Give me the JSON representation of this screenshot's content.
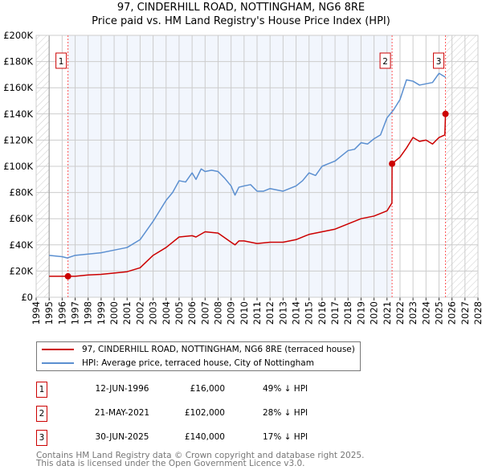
{
  "chart_data": {
    "type": "line",
    "title": "97, CINDERHILL ROAD, NOTTINGHAM, NG6 8RE",
    "subtitle": "Price paid vs. HM Land Registry's House Price Index (HPI)",
    "xlim": [
      1994,
      2028
    ],
    "ylim": [
      0,
      200000
    ],
    "x_ticks": [
      "1994",
      "1995",
      "1996",
      "1997",
      "1998",
      "1999",
      "2000",
      "2001",
      "2002",
      "2003",
      "2004",
      "2005",
      "2006",
      "2007",
      "2008",
      "2009",
      "2010",
      "2011",
      "2012",
      "2013",
      "2014",
      "2015",
      "2016",
      "2017",
      "2018",
      "2019",
      "2020",
      "2021",
      "2022",
      "2023",
      "2024",
      "2025",
      "2026",
      "2027",
      "2028"
    ],
    "y_ticks": [
      {
        "v": 0,
        "label": "£0"
      },
      {
        "v": 20000,
        "label": "£20K"
      },
      {
        "v": 40000,
        "label": "£40K"
      },
      {
        "v": 60000,
        "label": "£60K"
      },
      {
        "v": 80000,
        "label": "£80K"
      },
      {
        "v": 100000,
        "label": "£100K"
      },
      {
        "v": 120000,
        "label": "£120K"
      },
      {
        "v": 140000,
        "label": "£140K"
      },
      {
        "v": 160000,
        "label": "£160K"
      },
      {
        "v": 180000,
        "label": "£180K"
      },
      {
        "v": 200000,
        "label": "£200K"
      }
    ],
    "grid": true,
    "data_range": [
      1995,
      2025.5
    ],
    "shaded_range": [
      1996.45,
      2021.39
    ],
    "series": [
      {
        "name": "97, CINDERHILL ROAD, NOTTINGHAM, NG6 8RE (terraced house)",
        "color": "#cc0000",
        "x": [
          1995,
          1996.45,
          1997,
          1998,
          1999,
          2000,
          2001,
          2002,
          2003,
          2004,
          2005,
          2006,
          2006.3,
          2007,
          2008,
          2009,
          2009.3,
          2009.6,
          2010,
          2011,
          2012,
          2013,
          2014,
          2015,
          2016,
          2017,
          2018,
          2019,
          2020,
          2021,
          2021.38,
          2021.39,
          2022,
          2022.5,
          2023,
          2023.5,
          2024,
          2024.5,
          2025,
          2025.45,
          2025.5
        ],
        "y": [
          16000,
          16000,
          16000,
          17000,
          17500,
          18500,
          19500,
          22500,
          32000,
          38000,
          46000,
          47000,
          46000,
          50000,
          49000,
          42000,
          40000,
          43000,
          43000,
          41000,
          42000,
          42000,
          44000,
          48000,
          50000,
          52000,
          56000,
          60000,
          62000,
          66000,
          72000,
          102000,
          107000,
          114000,
          122000,
          119000,
          120000,
          117000,
          122000,
          124000,
          140000
        ]
      },
      {
        "name": "HPI: Average price, terraced house, City of Nottingham",
        "color": "#5b8fd0",
        "x": [
          1995,
          1996,
          1996.4,
          1997,
          1998,
          1999,
          2000,
          2001,
          2002,
          2003,
          2004,
          2004.5,
          2005,
          2005.5,
          2006,
          2006.3,
          2006.7,
          2007,
          2007.5,
          2008,
          2008.5,
          2009,
          2009.3,
          2009.6,
          2010,
          2010.5,
          2011,
          2011.5,
          2012,
          2013,
          2014,
          2014.5,
          2015,
          2015.5,
          2016,
          2016.5,
          2017,
          2017.5,
          2018,
          2018.5,
          2019,
          2019.5,
          2020,
          2020.5,
          2021,
          2021.5,
          2022,
          2022.5,
          2023,
          2023.5,
          2024,
          2024.5,
          2025,
          2025.5
        ],
        "y": [
          32000,
          31000,
          30000,
          32000,
          33000,
          34000,
          36000,
          38000,
          44000,
          58000,
          74000,
          80000,
          89000,
          88000,
          95000,
          90000,
          98000,
          96000,
          97000,
          96000,
          91000,
          85000,
          78000,
          84000,
          85000,
          86000,
          81000,
          81000,
          83000,
          81000,
          85000,
          89000,
          95000,
          93000,
          100000,
          102000,
          104000,
          108000,
          112000,
          113000,
          118000,
          117000,
          121000,
          124000,
          137000,
          143000,
          151000,
          166000,
          165000,
          162000,
          163000,
          164000,
          171000,
          168000
        ]
      }
    ],
    "sales": [
      {
        "id": "1",
        "x": 1996.45,
        "y": 16000,
        "date": "12-JUN-1996",
        "price": "£16,000",
        "hpi": "49% ↓ HPI"
      },
      {
        "id": "2",
        "x": 2021.39,
        "y": 102000,
        "date": "21-MAY-2021",
        "price": "£102,000",
        "hpi": "28% ↓ HPI"
      },
      {
        "id": "3",
        "x": 2025.5,
        "y": 140000,
        "date": "30-JUN-2025",
        "price": "£140,000",
        "hpi": "17% ↓ HPI"
      }
    ]
  },
  "legend": {
    "property": "97, CINDERHILL ROAD, NOTTINGHAM, NG6 8RE (terraced house)",
    "hpi": "HPI: Average price, terraced house, City of Nottingham"
  },
  "footer": {
    "line1": "Contains HM Land Registry data © Crown copyright and database right 2025.",
    "line2": "This data is licensed under the Open Government Licence v3.0."
  }
}
